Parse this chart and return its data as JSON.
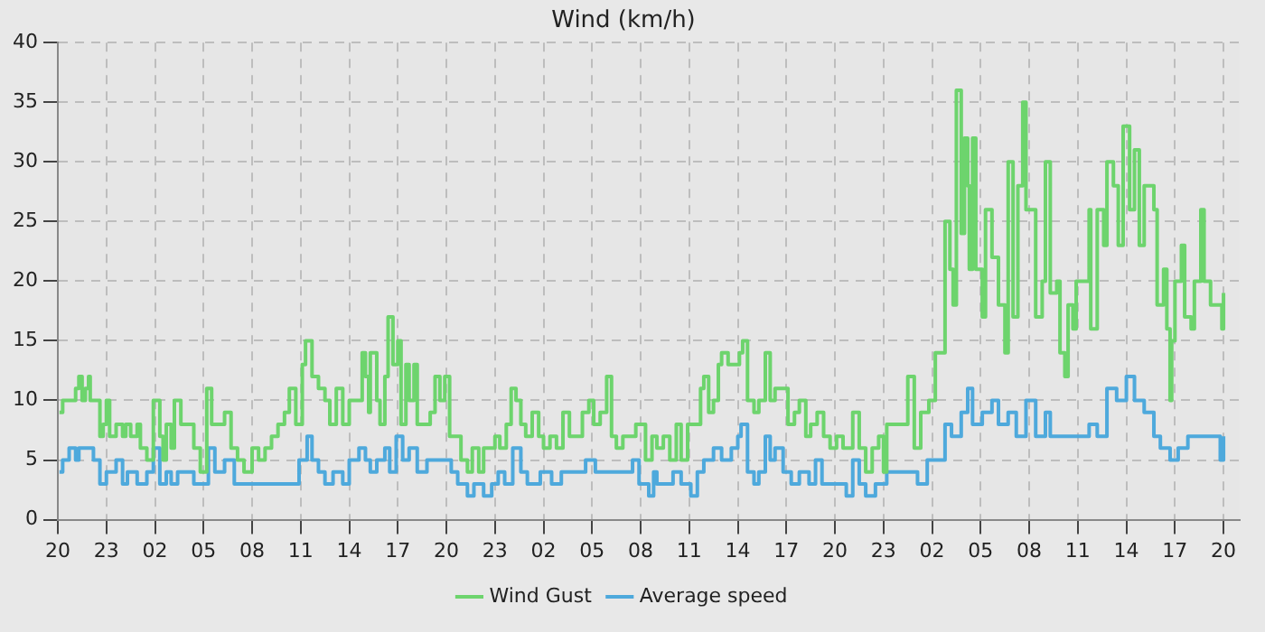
{
  "chart_data": {
    "type": "step",
    "title": "Wind (km/h)",
    "legend": "bottom",
    "grid": true,
    "xlim": [
      "--01-01T20:00",
      "--01-04T21:00"
    ],
    "xticks": [
      {
        "value": "--01-01T20:00",
        "label": "20"
      },
      {
        "value": "--01-01T23:00",
        "label": "23"
      },
      {
        "value": "--01-02T02:00",
        "label": "02"
      },
      {
        "value": "--01-02T05:00",
        "label": "05"
      },
      {
        "value": "--01-02T08:00",
        "label": "08"
      },
      {
        "value": "--01-02T11:00",
        "label": "11"
      },
      {
        "value": "--01-02T14:00",
        "label": "14"
      },
      {
        "value": "--01-02T17:00",
        "label": "17"
      },
      {
        "value": "--01-02T20:00",
        "label": "20"
      },
      {
        "value": "--01-02T23:00",
        "label": "23"
      },
      {
        "value": "--01-03T02:00",
        "label": "02"
      },
      {
        "value": "--01-03T05:00",
        "label": "05"
      },
      {
        "value": "--01-03T08:00",
        "label": "08"
      },
      {
        "value": "--01-03T11:00",
        "label": "11"
      },
      {
        "value": "--01-03T14:00",
        "label": "14"
      },
      {
        "value": "--01-03T17:00",
        "label": "17"
      },
      {
        "value": "--01-03T20:00",
        "label": "20"
      },
      {
        "value": "--01-03T23:00",
        "label": "23"
      },
      {
        "value": "--01-04T02:00",
        "label": "02"
      },
      {
        "value": "--01-04T05:00",
        "label": "05"
      },
      {
        "value": "--01-04T08:00",
        "label": "08"
      },
      {
        "value": "--01-04T11:00",
        "label": "11"
      },
      {
        "value": "--01-04T14:00",
        "label": "14"
      },
      {
        "value": "--01-04T17:00",
        "label": "17"
      },
      {
        "value": "--01-04T20:00",
        "label": "20"
      }
    ],
    "ylim": [
      0,
      40
    ],
    "yticks": [
      0,
      5,
      10,
      15,
      20,
      25,
      30,
      35,
      40
    ],
    "series": [
      {
        "name": "Wind Gust",
        "color": "#6dd46d",
        "x": [
          "--01-01T20:06",
          "--01-01T20:18",
          "--01-01T20:54",
          "--01-01T21:06",
          "--01-01T21:18",
          "--01-01T21:30",
          "--01-01T21:42",
          "--01-01T21:54",
          "--01-01T22:00",
          "--01-01T22:24",
          "--01-01T22:36",
          "--01-01T22:48",
          "--01-01T23:00",
          "--01-01T23:12",
          "--01-01T23:36",
          "--01-02T00:00",
          "--01-02T00:12",
          "--01-02T00:30",
          "--01-02T00:54",
          "--01-02T01:06",
          "--01-02T01:30",
          "--01-02T01:54",
          "--01-02T02:18",
          "--01-02T02:30",
          "--01-02T02:42",
          "--01-02T03:00",
          "--01-02T03:12",
          "--01-02T03:36",
          "--01-02T04:00",
          "--01-02T04:24",
          "--01-02T04:48",
          "--01-02T05:12",
          "--01-02T05:30",
          "--01-02T05:54",
          "--01-02T06:18",
          "--01-02T06:42",
          "--01-02T07:06",
          "--01-02T07:30",
          "--01-02T08:00",
          "--01-02T08:24",
          "--01-02T08:48",
          "--01-02T09:12",
          "--01-02T09:36",
          "--01-02T10:00",
          "--01-02T10:18",
          "--01-02T10:42",
          "--01-02T11:06",
          "--01-02T11:18",
          "--01-02T11:42",
          "--01-02T12:06",
          "--01-02T12:30",
          "--01-02T12:48",
          "--01-02T13:12",
          "--01-02T13:36",
          "--01-02T14:00",
          "--01-02T14:24",
          "--01-02T14:48",
          "--01-02T15:00",
          "--01-02T15:12",
          "--01-02T15:18",
          "--01-02T15:42",
          "--01-02T15:54",
          "--01-02T16:12",
          "--01-02T16:24",
          "--01-02T16:42",
          "--01-02T17:00",
          "--01-02T17:12",
          "--01-02T17:30",
          "--01-02T17:42",
          "--01-02T18:00",
          "--01-02T18:12",
          "--01-02T18:36",
          "--01-02T19:00",
          "--01-02T19:18",
          "--01-02T19:36",
          "--01-02T19:54",
          "--01-02T20:12",
          "--01-02T20:30",
          "--01-02T20:54",
          "--01-02T21:18",
          "--01-02T21:36",
          "--01-02T22:00",
          "--01-02T22:18",
          "--01-02T22:42",
          "--01-02T23:00",
          "--01-02T23:18",
          "--01-02T23:42",
          "--01-03T00:00",
          "--01-03T00:18",
          "--01-03T00:36",
          "--01-03T00:54",
          "--01-03T01:18",
          "--01-03T01:42",
          "--01-03T02:00",
          "--01-03T02:24",
          "--01-03T02:48",
          "--01-03T03:12",
          "--01-03T03:36",
          "--01-03T04:00",
          "--01-03T04:24",
          "--01-03T04:48",
          "--01-03T05:06",
          "--01-03T05:30",
          "--01-03T05:54",
          "--01-03T06:12",
          "--01-03T06:30",
          "--01-03T06:54",
          "--01-03T07:18",
          "--01-03T07:42",
          "--01-03T08:06",
          "--01-03T08:18",
          "--01-03T08:42",
          "--01-03T09:00",
          "--01-03T09:24",
          "--01-03T09:48",
          "--01-03T10:12",
          "--01-03T10:30",
          "--01-03T10:54",
          "--01-03T11:18",
          "--01-03T11:42",
          "--01-03T11:54",
          "--01-03T12:12",
          "--01-03T12:30",
          "--01-03T12:48",
          "--01-03T13:00",
          "--01-03T13:24",
          "--01-03T13:48",
          "--01-03T14:06",
          "--01-03T14:18",
          "--01-03T14:36",
          "--01-03T15:00",
          "--01-03T15:18",
          "--01-03T15:42",
          "--01-03T16:00",
          "--01-03T16:18",
          "--01-03T16:42",
          "--01-03T17:06",
          "--01-03T17:30",
          "--01-03T17:48",
          "--01-03T18:12",
          "--01-03T18:30",
          "--01-03T18:54",
          "--01-03T19:18",
          "--01-03T19:42",
          "--01-03T20:06",
          "--01-03T20:30",
          "--01-03T21:06",
          "--01-03T21:30",
          "--01-03T21:54",
          "--01-03T22:18",
          "--01-03T22:42",
          "--01-03T23:00",
          "--01-03T23:12",
          "--01-04T00:30",
          "--01-04T00:54",
          "--01-04T01:18",
          "--01-04T01:48",
          "--01-04T02:12",
          "--01-04T02:36",
          "--01-04T02:48",
          "--01-04T03:06",
          "--01-04T03:18",
          "--01-04T03:30",
          "--01-04T03:48",
          "--01-04T04:00",
          "--01-04T04:12",
          "--01-04T04:18",
          "--01-04T04:30",
          "--01-04T04:42",
          "--01-04T05:06",
          "--01-04T05:18",
          "--01-04T05:42",
          "--01-04T06:06",
          "--01-04T06:30",
          "--01-04T06:42",
          "--01-04T07:00",
          "--01-04T07:18",
          "--01-04T07:36",
          "--01-04T07:48",
          "--01-04T08:12",
          "--01-04T08:24",
          "--01-04T08:48",
          "--01-04T09:00",
          "--01-04T09:18",
          "--01-04T09:42",
          "--01-04T09:54",
          "--01-04T10:12",
          "--01-04T10:24",
          "--01-04T10:42",
          "--01-04T10:54",
          "--01-04T11:18",
          "--01-04T11:42",
          "--01-04T11:48",
          "--01-04T12:12",
          "--01-04T12:36",
          "--01-04T12:48",
          "--01-04T13:12",
          "--01-04T13:30",
          "--01-04T13:48",
          "--01-04T14:12",
          "--01-04T14:30",
          "--01-04T14:48",
          "--01-04T15:06",
          "--01-04T15:30",
          "--01-04T15:42",
          "--01-04T15:54",
          "--01-04T16:18",
          "--01-04T16:30",
          "--01-04T16:42",
          "--01-04T16:48",
          "--01-04T17:00",
          "--01-04T17:24",
          "--01-04T17:36",
          "--01-04T18:00",
          "--01-04T18:12",
          "--01-04T18:36",
          "--01-04T18:48",
          "--01-04T19:12",
          "--01-04T19:30",
          "--01-04T19:54",
          "--01-04T20:00"
        ],
        "values": [
          9,
          10,
          10,
          11,
          12,
          10,
          11,
          12,
          10,
          10,
          7,
          8,
          10,
          7,
          8,
          7,
          8,
          7,
          8,
          6,
          5,
          10,
          7,
          5,
          8,
          6,
          10,
          8,
          8,
          6,
          4,
          11,
          8,
          8,
          9,
          6,
          5,
          4,
          6,
          5,
          6,
          7,
          8,
          9,
          11,
          8,
          13,
          15,
          12,
          11,
          10,
          8,
          11,
          8,
          10,
          10,
          14,
          12,
          9,
          14,
          10,
          8,
          12,
          17,
          13,
          15,
          8,
          13,
          10,
          13,
          8,
          8,
          9,
          12,
          10,
          12,
          7,
          7,
          5,
          4,
          6,
          4,
          6,
          6,
          7,
          6,
          8,
          11,
          10,
          8,
          7,
          9,
          7,
          6,
          7,
          6,
          9,
          7,
          7,
          9,
          10,
          8,
          9,
          12,
          7,
          6,
          7,
          7,
          8,
          8,
          5,
          7,
          6,
          7,
          5,
          8,
          5,
          8,
          8,
          11,
          12,
          9,
          10,
          13,
          14,
          13,
          13,
          14,
          15,
          10,
          9,
          10,
          14,
          10,
          11,
          11,
          8,
          9,
          10,
          7,
          8,
          9,
          7,
          6,
          7,
          6,
          9,
          6,
          4,
          6,
          7,
          4,
          8,
          12,
          6,
          9,
          10,
          14,
          14,
          25,
          21,
          18,
          36,
          24,
          32,
          28,
          21,
          32,
          21,
          17,
          26,
          22,
          18,
          14,
          30,
          17,
          28,
          35,
          26,
          26,
          17,
          20,
          30,
          19,
          20,
          14,
          12,
          18,
          16,
          20,
          20,
          26,
          16,
          26,
          23,
          30,
          28,
          23,
          33,
          26,
          31,
          23,
          28,
          28,
          26,
          18,
          21,
          16,
          10,
          15,
          20,
          23,
          17,
          16,
          20,
          26,
          20,
          18,
          18,
          16,
          19
        ]
      },
      {
        "name": "Average speed",
        "color": "#4ea9dc",
        "x": [
          "--01-01T20:06",
          "--01-01T20:18",
          "--01-01T20:42",
          "--01-01T21:06",
          "--01-01T21:18",
          "--01-01T21:48",
          "--01-01T22:12",
          "--01-01T22:36",
          "--01-01T23:00",
          "--01-01T23:36",
          "--01-02T00:00",
          "--01-02T00:18",
          "--01-02T00:54",
          "--01-02T01:30",
          "--01-02T01:54",
          "--01-02T02:18",
          "--01-02T02:42",
          "--01-02T03:00",
          "--01-02T03:24",
          "--01-02T03:48",
          "--01-02T04:24",
          "--01-02T05:12",
          "--01-02T05:18",
          "--01-02T05:42",
          "--01-02T06:18",
          "--01-02T06:54",
          "--01-02T07:30",
          "--01-02T08:12",
          "--01-02T09:00",
          "--01-02T09:48",
          "--01-02T10:30",
          "--01-02T10:54",
          "--01-02T11:24",
          "--01-02T11:42",
          "--01-02T12:06",
          "--01-02T12:30",
          "--01-02T13:00",
          "--01-02T13:36",
          "--01-02T14:00",
          "--01-02T14:36",
          "--01-02T15:00",
          "--01-02T15:18",
          "--01-02T15:42",
          "--01-02T16:12",
          "--01-02T16:30",
          "--01-02T16:54",
          "--01-02T17:18",
          "--01-02T17:42",
          "--01-02T18:12",
          "--01-02T18:48",
          "--01-02T19:36",
          "--01-02T20:00",
          "--01-02T20:18",
          "--01-02T20:42",
          "--01-02T21:18",
          "--01-02T21:42",
          "--01-02T22:18",
          "--01-02T22:48",
          "--01-02T23:12",
          "--01-02T23:36",
          "--01-03T00:06",
          "--01-03T00:36",
          "--01-03T01:00",
          "--01-03T01:48",
          "--01-03T02:30",
          "--01-03T03:06",
          "--01-03T03:48",
          "--01-03T04:36",
          "--01-03T05:12",
          "--01-03T06:00",
          "--01-03T06:42",
          "--01-03T07:30",
          "--01-03T07:54",
          "--01-03T08:30",
          "--01-03T08:48",
          "--01-03T09:00",
          "--01-03T10:00",
          "--01-03T10:30",
          "--01-03T11:06",
          "--01-03T11:30",
          "--01-03T11:54",
          "--01-03T12:30",
          "--01-03T13:00",
          "--01-03T13:36",
          "--01-03T14:00",
          "--01-03T14:12",
          "--01-03T14:36",
          "--01-03T15:00",
          "--01-03T15:18",
          "--01-03T15:42",
          "--01-03T16:00",
          "--01-03T16:18",
          "--01-03T16:48",
          "--01-03T17:18",
          "--01-03T17:48",
          "--01-03T18:24",
          "--01-03T18:48",
          "--01-03T19:12",
          "--01-03T19:48",
          "--01-03T20:18",
          "--01-03T20:42",
          "--01-03T21:06",
          "--01-03T21:30",
          "--01-03T21:54",
          "--01-03T22:30",
          "--01-03T23:00",
          "--01-03T23:12",
          "--01-04T00:30",
          "--01-04T01:06",
          "--01-04T01:42",
          "--01-04T02:12",
          "--01-04T02:48",
          "--01-04T03:12",
          "--01-04T03:48",
          "--01-04T04:12",
          "--01-04T04:30",
          "--01-04T05:06",
          "--01-04T05:42",
          "--01-04T06:06",
          "--01-04T06:42",
          "--01-04T07:12",
          "--01-04T07:48",
          "--01-04T08:24",
          "--01-04T09:00",
          "--01-04T09:18",
          "--01-04T10:06",
          "--01-04T10:54",
          "--01-04T11:42",
          "--01-04T12:12",
          "--01-04T12:48",
          "--01-04T13:24",
          "--01-04T14:00",
          "--01-04T14:30",
          "--01-04T15:06",
          "--01-04T15:42",
          "--01-04T16:06",
          "--01-04T16:42",
          "--01-04T17:12",
          "--01-04T17:48",
          "--01-04T18:36",
          "--01-04T19:18",
          "--01-04T19:48",
          "--01-04T20:00"
        ],
        "values": [
          4,
          5,
          6,
          5,
          6,
          6,
          5,
          3,
          4,
          5,
          3,
          4,
          3,
          4,
          6,
          3,
          4,
          3,
          4,
          4,
          3,
          3,
          6,
          4,
          5,
          3,
          3,
          3,
          3,
          3,
          3,
          5,
          7,
          5,
          4,
          3,
          4,
          3,
          5,
          6,
          5,
          4,
          5,
          6,
          4,
          7,
          5,
          6,
          4,
          5,
          5,
          5,
          4,
          3,
          2,
          3,
          2,
          3,
          4,
          3,
          6,
          4,
          3,
          4,
          3,
          4,
          4,
          5,
          4,
          4,
          4,
          5,
          3,
          2,
          4,
          3,
          4,
          3,
          2,
          4,
          5,
          6,
          5,
          6,
          7,
          8,
          4,
          3,
          4,
          7,
          5,
          6,
          4,
          3,
          4,
          3,
          5,
          3,
          3,
          3,
          2,
          5,
          3,
          2,
          3,
          3,
          4,
          4,
          3,
          5,
          5,
          8,
          7,
          9,
          11,
          8,
          9,
          10,
          8,
          9,
          7,
          10,
          7,
          9,
          7,
          7,
          7,
          8,
          7,
          11,
          10,
          12,
          10,
          9,
          7,
          6,
          5,
          6,
          7,
          7,
          7,
          5,
          7
        ]
      }
    ]
  }
}
